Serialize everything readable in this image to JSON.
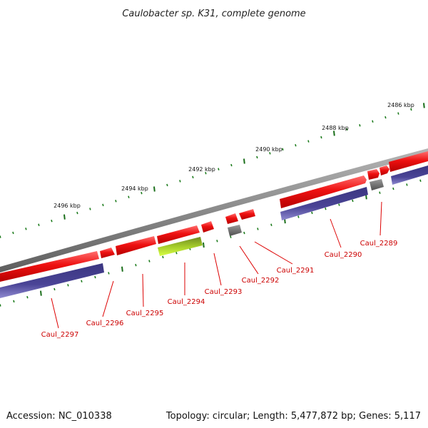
{
  "title": "Caulobacter sp. K31, complete genome",
  "footer": {
    "accession": "Accession: NC_010338",
    "summary": "Topology: circular; Length: 5,477,872 bp; Genes: 5,117"
  },
  "colors": {
    "backbone": "#8a8a8a",
    "forward_cds": "#ee1111",
    "reverse_track": "#4a4496",
    "gray_gene": "#6e6e6e",
    "green_gene": "#8ec21a",
    "tick_major": "#1a6e1a",
    "tick_minor": "#1a7a1a",
    "label_line": "#dd0000",
    "label_text": "#cc0000"
  },
  "kbp_labels": [
    {
      "text": "2486 kbp"
    },
    {
      "text": "2488 kbp"
    },
    {
      "text": "2490 kbp"
    },
    {
      "text": "2492 kbp"
    },
    {
      "text": "2494 kbp"
    },
    {
      "text": "2496 kbp"
    }
  ],
  "genes": [
    {
      "label": "Caul_2289"
    },
    {
      "label": "Caul_2290"
    },
    {
      "label": "Caul_2291"
    },
    {
      "label": "Caul_2292"
    },
    {
      "label": "Caul_2293"
    },
    {
      "label": "Caul_2294"
    },
    {
      "label": "Caul_2295"
    },
    {
      "label": "Caul_2296"
    },
    {
      "label": "Caul_2297"
    }
  ]
}
